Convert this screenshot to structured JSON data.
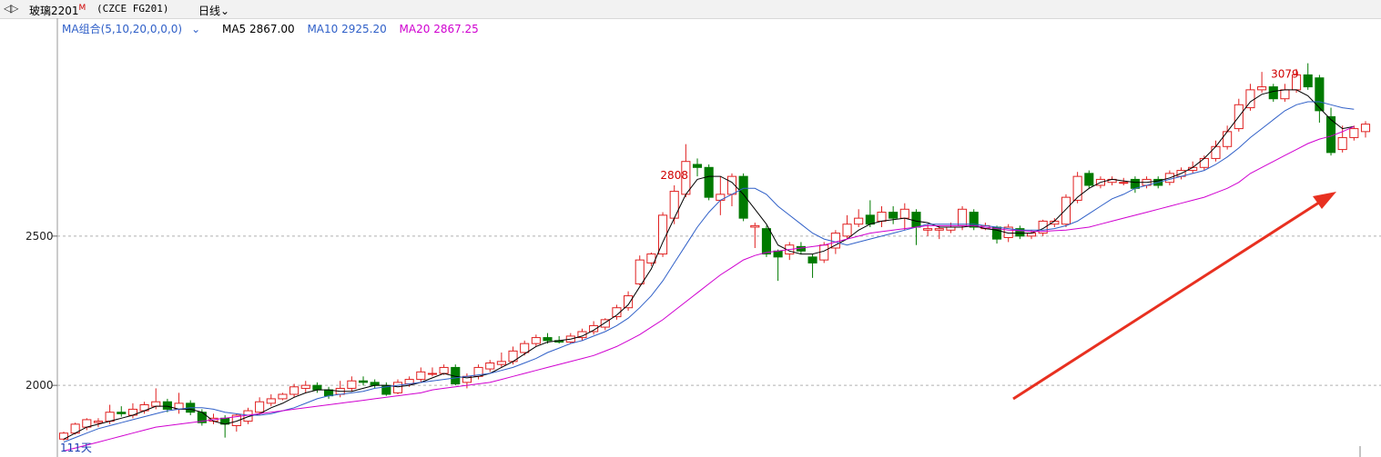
{
  "header": {
    "symbol": "玻璃2201",
    "symbol_mark": "M",
    "code": "(CZCE FG201)",
    "period": "日线",
    "period_arrow": "chevron-down-icon"
  },
  "legend": {
    "combo": "MA组合(5,10,20,0,0,0)",
    "ma5": "MA5 2867.00",
    "ma10": "MA10 2925.20",
    "ma20": "MA20 2867.25"
  },
  "footer": {
    "days": "111天"
  },
  "colors": {
    "up": "#e02020",
    "down": "#007a00",
    "ma5": "#000000",
    "ma10": "#3060c8",
    "ma20": "#d000d0",
    "arrow": "#e83020"
  },
  "chart_data": {
    "type": "candlestick",
    "yticks": [
      2000,
      2500
    ],
    "ylim": [
      1760,
      3230
    ],
    "grid": true,
    "annotations": [
      {
        "text": "2808",
        "index": 53
      },
      {
        "text": "3079",
        "index": 106
      }
    ],
    "candles": [
      [
        1820,
        1840,
        1815,
        1845
      ],
      [
        1840,
        1870,
        1835,
        1875
      ],
      [
        1860,
        1885,
        1850,
        1890
      ],
      [
        1875,
        1880,
        1860,
        1890
      ],
      [
        1880,
        1910,
        1870,
        1935
      ],
      [
        1910,
        1905,
        1895,
        1930
      ],
      [
        1900,
        1920,
        1890,
        1940
      ],
      [
        1915,
        1935,
        1905,
        1945
      ],
      [
        1930,
        1945,
        1920,
        1990
      ],
      [
        1945,
        1920,
        1910,
        1955
      ],
      [
        1920,
        1940,
        1905,
        1975
      ],
      [
        1940,
        1910,
        1900,
        1950
      ],
      [
        1910,
        1875,
        1865,
        1920
      ],
      [
        1880,
        1890,
        1870,
        1905
      ],
      [
        1890,
        1870,
        1825,
        1900
      ],
      [
        1865,
        1900,
        1845,
        1905
      ],
      [
        1880,
        1915,
        1870,
        1925
      ],
      [
        1910,
        1945,
        1900,
        1960
      ],
      [
        1940,
        1955,
        1930,
        1970
      ],
      [
        1955,
        1970,
        1950,
        1975
      ],
      [
        1970,
        1995,
        1960,
        2005
      ],
      [
        1990,
        2000,
        1975,
        2015
      ],
      [
        2000,
        1985,
        1975,
        2010
      ],
      [
        1985,
        1965,
        1955,
        1995
      ],
      [
        1970,
        1990,
        1960,
        2015
      ],
      [
        1990,
        2015,
        1980,
        2030
      ],
      [
        2015,
        2010,
        2000,
        2030
      ],
      [
        2010,
        2000,
        1990,
        2020
      ],
      [
        2000,
        1970,
        1965,
        2010
      ],
      [
        1975,
        2010,
        1970,
        2020
      ],
      [
        2005,
        2020,
        1995,
        2030
      ],
      [
        2020,
        2045,
        2010,
        2060
      ],
      [
        2040,
        2040,
        2030,
        2060
      ],
      [
        2040,
        2060,
        2035,
        2070
      ],
      [
        2060,
        2005,
        2000,
        2070
      ],
      [
        2010,
        2030,
        1990,
        2040
      ],
      [
        2030,
        2060,
        2020,
        2070
      ],
      [
        2055,
        2075,
        2045,
        2085
      ],
      [
        2070,
        2080,
        2060,
        2110
      ],
      [
        2080,
        2115,
        2070,
        2130
      ],
      [
        2110,
        2140,
        2100,
        2150
      ],
      [
        2140,
        2160,
        2130,
        2170
      ],
      [
        2160,
        2150,
        2140,
        2175
      ],
      [
        2150,
        2145,
        2140,
        2165
      ],
      [
        2145,
        2165,
        2140,
        2175
      ],
      [
        2160,
        2180,
        2150,
        2190
      ],
      [
        2180,
        2200,
        2170,
        2215
      ],
      [
        2195,
        2220,
        2185,
        2225
      ],
      [
        2230,
        2260,
        2220,
        2270
      ],
      [
        2260,
        2300,
        2250,
        2315
      ],
      [
        2340,
        2420,
        2335,
        2435
      ],
      [
        2410,
        2440,
        2400,
        2445
      ],
      [
        2440,
        2570,
        2430,
        2580
      ],
      [
        2560,
        2650,
        2540,
        2670
      ],
      [
        2640,
        2750,
        2630,
        2808
      ],
      [
        2740,
        2730,
        2700,
        2760
      ],
      [
        2730,
        2630,
        2620,
        2740
      ],
      [
        2620,
        2640,
        2570,
        2700
      ],
      [
        2640,
        2700,
        2600,
        2710
      ],
      [
        2700,
        2560,
        2550,
        2710
      ],
      [
        2530,
        2535,
        2460,
        2545
      ],
      [
        2525,
        2440,
        2430,
        2535
      ],
      [
        2450,
        2430,
        2350,
        2455
      ],
      [
        2440,
        2470,
        2420,
        2480
      ],
      [
        2465,
        2450,
        2440,
        2480
      ],
      [
        2430,
        2410,
        2360,
        2440
      ],
      [
        2420,
        2470,
        2410,
        2480
      ],
      [
        2460,
        2510,
        2440,
        2520
      ],
      [
        2500,
        2540,
        2490,
        2570
      ],
      [
        2540,
        2560,
        2530,
        2590
      ],
      [
        2570,
        2540,
        2530,
        2620
      ],
      [
        2550,
        2580,
        2530,
        2600
      ],
      [
        2580,
        2560,
        2540,
        2600
      ],
      [
        2560,
        2590,
        2520,
        2610
      ],
      [
        2580,
        2530,
        2470,
        2590
      ],
      [
        2520,
        2525,
        2500,
        2540
      ],
      [
        2520,
        2525,
        2490,
        2535
      ],
      [
        2520,
        2530,
        2510,
        2545
      ],
      [
        2535,
        2590,
        2520,
        2600
      ],
      [
        2580,
        2530,
        2520,
        2590
      ],
      [
        2525,
        2535,
        2520,
        2545
      ],
      [
        2530,
        2490,
        2475,
        2535
      ],
      [
        2495,
        2530,
        2480,
        2540
      ],
      [
        2525,
        2500,
        2490,
        2535
      ],
      [
        2500,
        2510,
        2490,
        2520
      ],
      [
        2510,
        2550,
        2500,
        2555
      ],
      [
        2540,
        2550,
        2530,
        2560
      ],
      [
        2540,
        2630,
        2530,
        2640
      ],
      [
        2620,
        2700,
        2610,
        2715
      ],
      [
        2710,
        2670,
        2660,
        2720
      ],
      [
        2670,
        2690,
        2660,
        2700
      ],
      [
        2680,
        2690,
        2670,
        2700
      ],
      [
        2680,
        2680,
        2670,
        2695
      ],
      [
        2690,
        2660,
        2645,
        2700
      ],
      [
        2670,
        2690,
        2660,
        2700
      ],
      [
        2690,
        2670,
        2660,
        2700
      ],
      [
        2680,
        2710,
        2670,
        2720
      ],
      [
        2700,
        2720,
        2690,
        2730
      ],
      [
        2720,
        2730,
        2710,
        2750
      ],
      [
        2730,
        2760,
        2720,
        2770
      ],
      [
        2760,
        2800,
        2750,
        2820
      ],
      [
        2800,
        2850,
        2790,
        2870
      ],
      [
        2860,
        2940,
        2850,
        2960
      ],
      [
        2930,
        2990,
        2920,
        3010
      ],
      [
        2990,
        3000,
        2980,
        3050
      ],
      [
        3000,
        2960,
        2950,
        3010
      ],
      [
        2960,
        2990,
        2950,
        3010
      ],
      [
        2990,
        3040,
        2980,
        3060
      ],
      [
        3040,
        3000,
        2990,
        3079
      ],
      [
        3030,
        2920,
        2880,
        3040
      ],
      [
        2900,
        2780,
        2770,
        2930
      ],
      [
        2790,
        2830,
        2780,
        2870
      ],
      [
        2830,
        2860,
        2820,
        2870
      ],
      [
        2850,
        2875,
        2830,
        2885
      ]
    ],
    "ma5": [
      1820,
      1840,
      1860,
      1870,
      1880,
      1890,
      1900,
      1915,
      1930,
      1930,
      1920,
      1920,
      1910,
      1880,
      1870,
      1880,
      1895,
      1905,
      1925,
      1940,
      1960,
      1975,
      1985,
      1985,
      1980,
      1980,
      1990,
      2000,
      2000,
      1995,
      2000,
      2010,
      2025,
      2040,
      2030,
      2025,
      2030,
      2040,
      2060,
      2080,
      2105,
      2130,
      2145,
      2150,
      2155,
      2165,
      2185,
      2210,
      2235,
      2270,
      2330,
      2390,
      2480,
      2560,
      2640,
      2690,
      2700,
      2700,
      2680,
      2640,
      2590,
      2540,
      2470,
      2450,
      2440,
      2440,
      2450,
      2470,
      2490,
      2520,
      2540,
      2550,
      2555,
      2560,
      2550,
      2545,
      2530,
      2530,
      2530,
      2535,
      2525,
      2520,
      2510,
      2510,
      2510,
      2525,
      2550,
      2590,
      2630,
      2660,
      2680,
      2690,
      2685,
      2680,
      2680,
      2685,
      2695,
      2710,
      2730,
      2760,
      2800,
      2850,
      2900,
      2950,
      2975,
      2985,
      2990,
      2990,
      2970,
      2930,
      2890,
      2860,
      2867
    ],
    "ma10": [
      1810,
      1825,
      1840,
      1855,
      1865,
      1875,
      1885,
      1895,
      1905,
      1915,
      1920,
      1925,
      1925,
      1920,
      1910,
      1905,
      1900,
      1900,
      1905,
      1915,
      1925,
      1940,
      1955,
      1965,
      1970,
      1975,
      1980,
      1990,
      1995,
      2000,
      2005,
      2010,
      2015,
      2020,
      2025,
      2030,
      2035,
      2040,
      2050,
      2060,
      2075,
      2090,
      2110,
      2125,
      2140,
      2150,
      2165,
      2180,
      2200,
      2225,
      2260,
      2300,
      2350,
      2410,
      2470,
      2530,
      2580,
      2620,
      2640,
      2660,
      2660,
      2640,
      2600,
      2570,
      2540,
      2510,
      2490,
      2480,
      2470,
      2480,
      2490,
      2500,
      2510,
      2520,
      2530,
      2540,
      2540,
      2540,
      2540,
      2540,
      2535,
      2530,
      2525,
      2520,
      2520,
      2520,
      2525,
      2535,
      2550,
      2575,
      2600,
      2625,
      2640,
      2660,
      2670,
      2680,
      2690,
      2700,
      2710,
      2720,
      2740,
      2765,
      2795,
      2830,
      2860,
      2890,
      2920,
      2940,
      2950,
      2950,
      2940,
      2930,
      2925
    ],
    "ma20": [
      1780,
      1790,
      1800,
      1810,
      1820,
      1830,
      1840,
      1850,
      1860,
      1865,
      1870,
      1875,
      1880,
      1885,
      1890,
      1895,
      1900,
      1905,
      1910,
      1915,
      1920,
      1925,
      1930,
      1935,
      1940,
      1945,
      1950,
      1955,
      1960,
      1965,
      1970,
      1975,
      1985,
      1990,
      1995,
      2000,
      2005,
      2010,
      2020,
      2030,
      2040,
      2050,
      2060,
      2070,
      2080,
      2090,
      2100,
      2115,
      2130,
      2150,
      2170,
      2195,
      2220,
      2250,
      2280,
      2310,
      2340,
      2370,
      2395,
      2420,
      2435,
      2445,
      2450,
      2455,
      2460,
      2465,
      2470,
      2480,
      2490,
      2500,
      2510,
      2515,
      2520,
      2525,
      2530,
      2535,
      2535,
      2535,
      2535,
      2535,
      2530,
      2525,
      2520,
      2518,
      2516,
      2516,
      2518,
      2520,
      2525,
      2530,
      2540,
      2550,
      2560,
      2570,
      2580,
      2590,
      2600,
      2610,
      2620,
      2630,
      2645,
      2660,
      2680,
      2710,
      2730,
      2750,
      2770,
      2790,
      2810,
      2825,
      2835,
      2850,
      2867
    ]
  }
}
